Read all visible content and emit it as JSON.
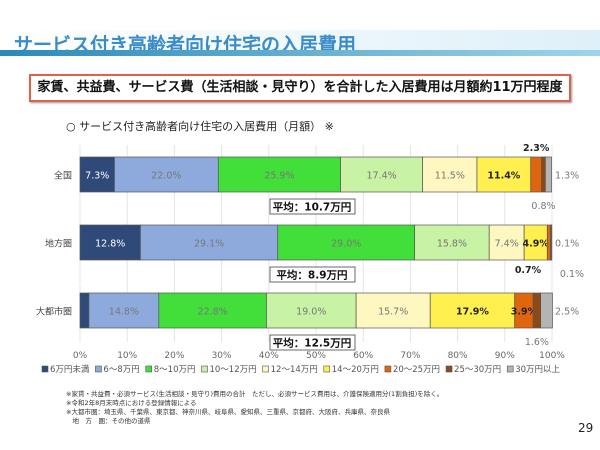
{
  "header": {
    "title": "サービス付き高齢者向け住宅の入居費用",
    "summary": "家賃、共益費、サービス費（生活相談・見守り）を合計した入居費用は月額約11万円程度"
  },
  "chart_data": {
    "type": "bar",
    "orientation": "horizontal",
    "stacked": true,
    "title": "○ サービス付き高齢者向け住宅の入居費用（月額） ※",
    "categories": [
      "全国",
      "地方圏",
      "大都市圏"
    ],
    "xlim": [
      0,
      100
    ],
    "xticks": [
      "0%",
      "10%",
      "20%",
      "30%",
      "40%",
      "50%",
      "60%",
      "70%",
      "80%",
      "90%",
      "100%"
    ],
    "grid": true,
    "legend": "bottom",
    "series": [
      {
        "name": "6万円未満",
        "color": "#2f4a78",
        "values": [
          7.3,
          12.8,
          1.9
        ]
      },
      {
        "name": "6～8万円",
        "color": "#8eaadc",
        "values": [
          22.0,
          29.1,
          14.8
        ]
      },
      {
        "name": "8～10万円",
        "color": "#42df3a",
        "values": [
          25.9,
          29.0,
          22.8
        ]
      },
      {
        "name": "10～12万円",
        "color": "#c8f2a4",
        "values": [
          17.4,
          15.8,
          19.0
        ]
      },
      {
        "name": "12～14万円",
        "color": "#fff7c0",
        "values": [
          11.5,
          7.4,
          15.7
        ]
      },
      {
        "name": "14～20万円",
        "color": "#fff050",
        "values": [
          11.4,
          4.9,
          17.9
        ]
      },
      {
        "name": "20～25万円",
        "color": "#e0660e",
        "values": [
          2.3,
          0.7,
          3.9
        ]
      },
      {
        "name": "25～30万円",
        "color": "#8b4a18",
        "values": [
          0.8,
          0.1,
          1.6
        ]
      },
      {
        "name": "30万円以上",
        "color": "#b4b4b4",
        "values": [
          1.3,
          0.1,
          2.5
        ]
      }
    ],
    "averages": [
      "平均：10.7万円",
      "平均：8.9万円",
      "平均：12.5万円"
    ]
  },
  "notes": [
    "※家賃・共益費・必須サービス(生活相談・見守り)費用の合計　ただし、必須サービス費用は、介護保険適用分(1割負担)を除く。",
    "※令和2年8月末時点における登録情報による",
    "※大都市圏：埼玉県、千葉県、東京都、神奈川県、岐阜県、愛知県、三重県、京都府、大阪府、兵庫県、奈良県",
    "　地　方　圏：その他の道県"
  ],
  "page_number": "29"
}
